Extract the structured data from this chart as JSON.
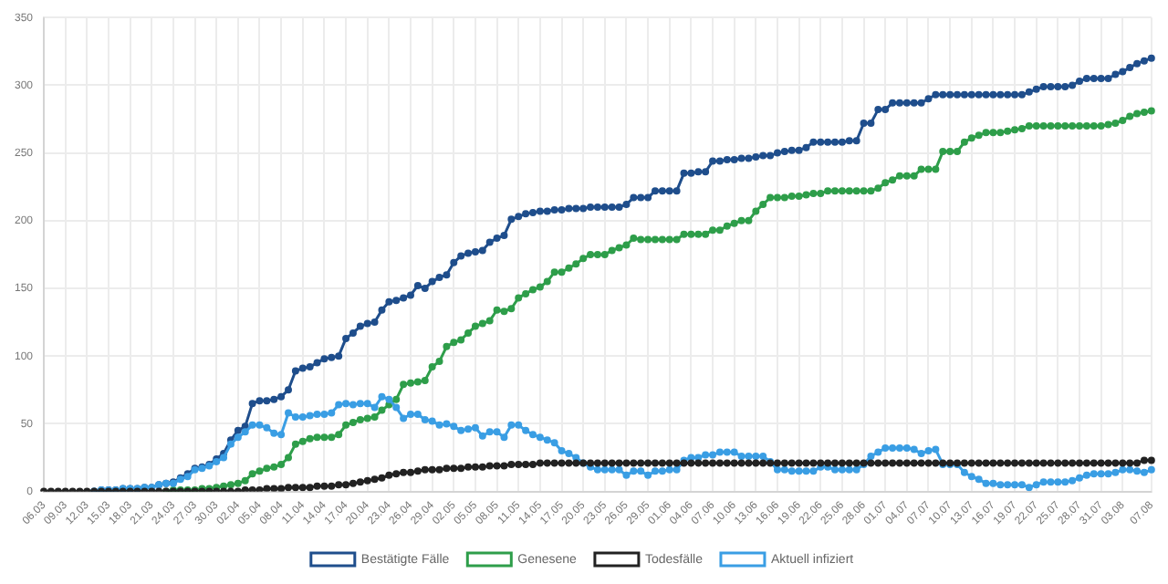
{
  "chart_data": {
    "type": "line",
    "categories": [
      "06.03",
      null,
      null,
      "09.03",
      null,
      null,
      "12.03",
      null,
      null,
      "15.03",
      null,
      null,
      "18.03",
      null,
      null,
      "21.03",
      null,
      null,
      "24.03",
      null,
      null,
      "27.03",
      null,
      null,
      "30.03",
      null,
      null,
      "02.04",
      null,
      null,
      "05.04",
      null,
      null,
      "08.04",
      null,
      null,
      "11.04",
      null,
      null,
      "14.04",
      null,
      null,
      "17.04",
      null,
      null,
      "20.04",
      null,
      null,
      "23.04",
      null,
      null,
      "26.04",
      null,
      null,
      "29.04",
      null,
      null,
      "02.05",
      null,
      null,
      "05.05",
      null,
      null,
      "08.05",
      null,
      null,
      "11.05",
      null,
      null,
      "14.05",
      null,
      null,
      "17.05",
      null,
      null,
      "20.05",
      null,
      null,
      "23.05",
      null,
      null,
      "26.05",
      null,
      null,
      "29.05",
      null,
      null,
      "01.06",
      null,
      null,
      "04.06",
      null,
      null,
      "07.06",
      null,
      null,
      "10.06",
      null,
      null,
      "13.06",
      null,
      null,
      "16.06",
      null,
      null,
      "19.06",
      null,
      null,
      "22.06",
      null,
      null,
      "25.06",
      null,
      null,
      "28.06",
      null,
      null,
      "01.07",
      null,
      null,
      "04.07",
      null,
      null,
      "07.07",
      null,
      null,
      "10.07",
      null,
      null,
      "13.07",
      null,
      null,
      "16.07",
      null,
      null,
      "19.07",
      null,
      null,
      "22.07",
      null,
      null,
      "25.07",
      null,
      null,
      "28.07",
      null,
      null,
      "31.07",
      null,
      null,
      "03.08",
      null,
      null,
      null,
      "07.08"
    ],
    "series": [
      {
        "name": "Bestätigte Fälle",
        "color": "#1f4e8c",
        "values": [
          null,
          null,
          null,
          null,
          null,
          null,
          null,
          0,
          1,
          1,
          1,
          2,
          2,
          2,
          3,
          3,
          5,
          6,
          7,
          10,
          13,
          17,
          18,
          20,
          24,
          28,
          38,
          45,
          48,
          65,
          67,
          67,
          68,
          70,
          75,
          89,
          91,
          92,
          95,
          98,
          99,
          100,
          113,
          117,
          122,
          124,
          125,
          134,
          140,
          141,
          143,
          145,
          152,
          150,
          155,
          158,
          160,
          169,
          174,
          176,
          177,
          178,
          184,
          187,
          189,
          201,
          203,
          205,
          206,
          207,
          207,
          208,
          208,
          209,
          209,
          209,
          210,
          210,
          210,
          210,
          210,
          212,
          217,
          217,
          217,
          222,
          222,
          222,
          222,
          235,
          235,
          236,
          236,
          244,
          244,
          245,
          245,
          246,
          246,
          247,
          248,
          248,
          250,
          251,
          252,
          252,
          254,
          258,
          258,
          258,
          258,
          258,
          259,
          259,
          272,
          272,
          282,
          282,
          287,
          287,
          287,
          287,
          287,
          290,
          293,
          293,
          293,
          293,
          293,
          293,
          293,
          293,
          293,
          293,
          293,
          293,
          293,
          295,
          297,
          299,
          299,
          299,
          299,
          300,
          303,
          305,
          305,
          305,
          305,
          308,
          310,
          313,
          316,
          318,
          320
        ]
      },
      {
        "name": "Genesene",
        "color": "#2e9e4a",
        "values": [
          null,
          null,
          null,
          null,
          null,
          null,
          null,
          null,
          null,
          null,
          null,
          null,
          null,
          null,
          null,
          null,
          null,
          0,
          1,
          1,
          1,
          1,
          2,
          2,
          3,
          4,
          5,
          6,
          8,
          13,
          15,
          17,
          18,
          20,
          25,
          35,
          37,
          39,
          40,
          40,
          40,
          42,
          49,
          51,
          53,
          54,
          55,
          60,
          64,
          68,
          79,
          80,
          81,
          82,
          92,
          96,
          107,
          110,
          112,
          117,
          122,
          124,
          126,
          134,
          133,
          135,
          143,
          146,
          149,
          151,
          155,
          162,
          162,
          165,
          168,
          172,
          175,
          175,
          175,
          178,
          180,
          182,
          187,
          186,
          186,
          186,
          186,
          186,
          186,
          190,
          190,
          190,
          190,
          193,
          193,
          196,
          198,
          200,
          200,
          207,
          212,
          217,
          217,
          217,
          218,
          218,
          219,
          220,
          220,
          222,
          222,
          222,
          222,
          222,
          222,
          222,
          224,
          228,
          230,
          233,
          233,
          233,
          238,
          238,
          238,
          251,
          251,
          251,
          258,
          261,
          263,
          265,
          265,
          265,
          266,
          267,
          268,
          270,
          270,
          270,
          270,
          270,
          270,
          270,
          270,
          270,
          270,
          270,
          271,
          272,
          274,
          277,
          279,
          280,
          281
        ]
      },
      {
        "name": "Todesfälle",
        "color": "#222222",
        "values": [
          0,
          0,
          0,
          0,
          0,
          0,
          0,
          0,
          0,
          0,
          0,
          0,
          0,
          0,
          0,
          0,
          0,
          0,
          0,
          0,
          0,
          0,
          0,
          0,
          0,
          0,
          0,
          0,
          1,
          1,
          1,
          2,
          2,
          2,
          3,
          3,
          3,
          3,
          4,
          4,
          4,
          5,
          5,
          6,
          7,
          8,
          9,
          10,
          12,
          13,
          14,
          14,
          15,
          16,
          16,
          16,
          17,
          17,
          17,
          18,
          18,
          18,
          19,
          19,
          19,
          20,
          20,
          20,
          20,
          21,
          21,
          21,
          21,
          21,
          21,
          21,
          21,
          21,
          21,
          21,
          21,
          21,
          21,
          21,
          21,
          21,
          21,
          21,
          21,
          21,
          21,
          21,
          21,
          21,
          21,
          21,
          21,
          21,
          21,
          21,
          21,
          21,
          21,
          21,
          21,
          21,
          21,
          21,
          21,
          21,
          21,
          21,
          21,
          21,
          21,
          21,
          21,
          21,
          21,
          21,
          21,
          21,
          21,
          21,
          21,
          21,
          21,
          21,
          21,
          21,
          21,
          21,
          21,
          21,
          21,
          21,
          21,
          21,
          21,
          21,
          21,
          21,
          21,
          21,
          21,
          21,
          21,
          21,
          21,
          21,
          21,
          21,
          21,
          23,
          23
        ]
      },
      {
        "name": "Aktuell infiziert",
        "color": "#3a9ee4",
        "values": [
          null,
          null,
          null,
          null,
          null,
          null,
          null,
          0,
          1,
          1,
          1,
          2,
          2,
          2,
          3,
          3,
          5,
          6,
          6,
          9,
          11,
          16,
          17,
          19,
          22,
          25,
          35,
          40,
          44,
          49,
          49,
          47,
          43,
          42,
          58,
          55,
          55,
          56,
          57,
          57,
          58,
          64,
          65,
          64,
          65,
          65,
          62,
          70,
          68,
          62,
          54,
          57,
          57,
          53,
          52,
          49,
          50,
          48,
          45,
          46,
          47,
          41,
          44,
          44,
          40,
          49,
          49,
          45,
          42,
          40,
          38,
          36,
          30,
          28,
          25,
          21,
          18,
          16,
          16,
          16,
          16,
          12,
          15,
          15,
          12,
          15,
          15,
          16,
          16,
          23,
          25,
          25,
          27,
          27,
          29,
          29,
          29,
          26,
          26,
          26,
          26,
          22,
          16,
          16,
          15,
          15,
          15,
          15,
          18,
          18,
          16,
          16,
          16,
          16,
          20,
          26,
          29,
          32,
          32,
          32,
          32,
          31,
          28,
          30,
          31,
          20,
          20,
          20,
          14,
          11,
          9,
          6,
          6,
          5,
          5,
          5,
          5,
          3,
          5,
          7,
          7,
          7,
          7,
          8,
          10,
          12,
          13,
          13,
          13,
          14,
          16,
          16,
          15,
          14,
          16
        ]
      }
    ],
    "ylim": [
      0,
      350
    ],
    "yticks": [
      0,
      50,
      100,
      150,
      200,
      250,
      300,
      350
    ],
    "grid": true,
    "legend": "bottom",
    "marker": "circle",
    "line_style": "solid"
  }
}
